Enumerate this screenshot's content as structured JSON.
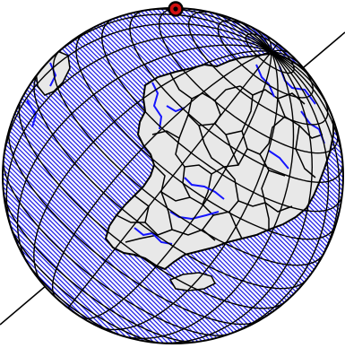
{
  "map": {
    "projection": "orthographic",
    "colors": {
      "background": "#ffffff",
      "ocean_hatch": "#1f1fe6",
      "land_fill": "#e8e8e8",
      "coastline": "#000000",
      "borders": "#000000",
      "rivers": "#1414ff",
      "graticule": "#000000",
      "rotation_axis": "#000000",
      "pole_marker_ring": "#000000",
      "pole_marker_fill": "#d01010"
    },
    "icons": {
      "pole_marker": "circled-dot-icon"
    }
  }
}
